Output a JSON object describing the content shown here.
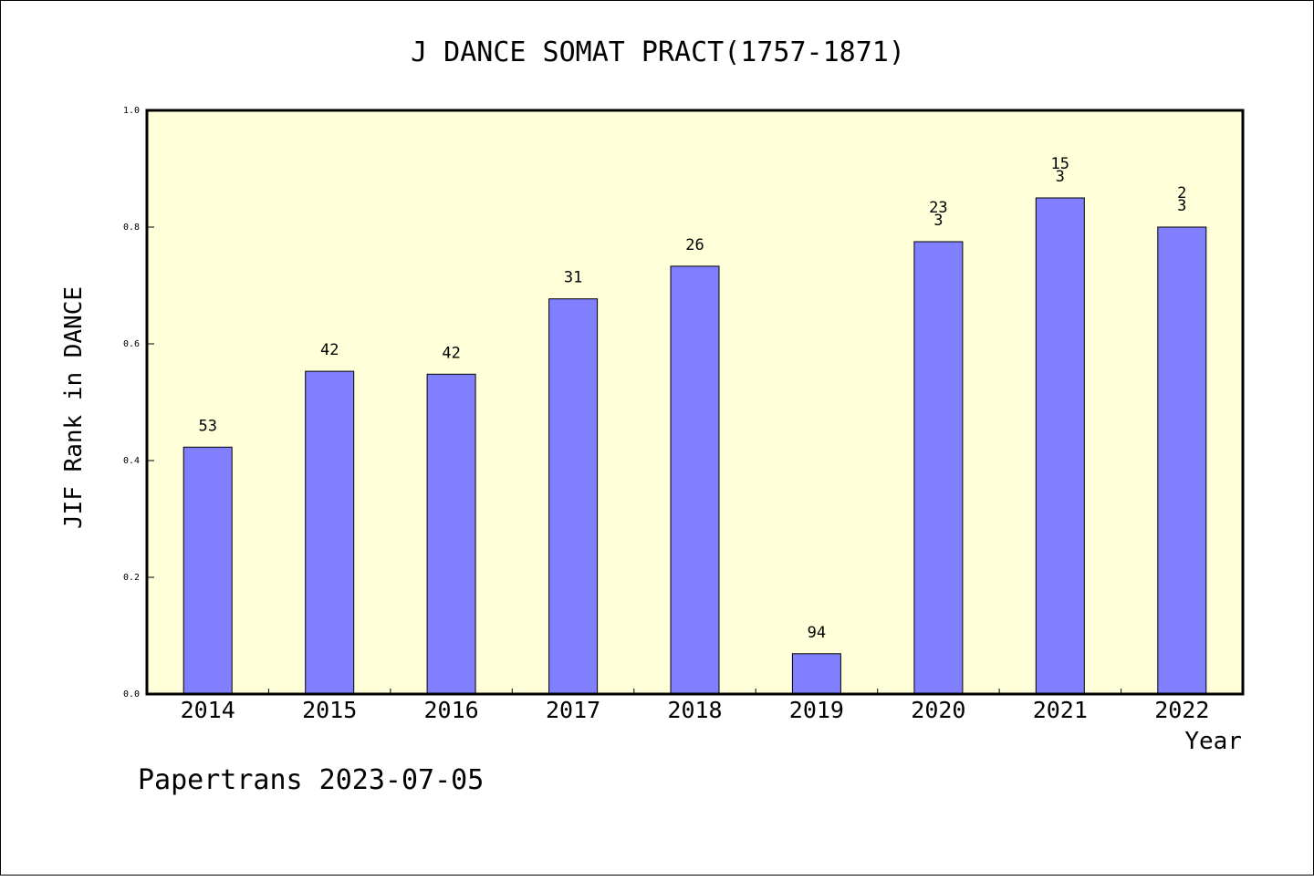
{
  "chart_data": {
    "type": "bar",
    "title": "J DANCE SOMAT PRACT(1757-1871)",
    "xlabel": "Year",
    "ylabel": "JIF Rank in DANCE",
    "ylim": [
      0,
      1.0
    ],
    "yticks": [
      "0.0",
      "0.2",
      "0.4",
      "0.6",
      "0.8",
      "1.0"
    ],
    "categories": [
      "2014",
      "2015",
      "2016",
      "2017",
      "2018",
      "2019",
      "2020",
      "2021",
      "2022"
    ],
    "values": [
      0.423,
      0.553,
      0.548,
      0.677,
      0.733,
      0.069,
      0.775,
      0.85,
      0.8
    ],
    "labels": [
      [
        "53"
      ],
      [
        "42"
      ],
      [
        "42"
      ],
      [
        "31"
      ],
      [
        "26"
      ],
      [
        "94"
      ],
      [
        "23",
        "3"
      ],
      [
        "15",
        "3"
      ],
      [
        "2",
        "3"
      ]
    ],
    "grid": false,
    "colors": {
      "plot_bg": "#ffffd9",
      "bar": "#8080ff",
      "border": "#000000"
    }
  },
  "footer": "Papertrans 2023-07-05"
}
